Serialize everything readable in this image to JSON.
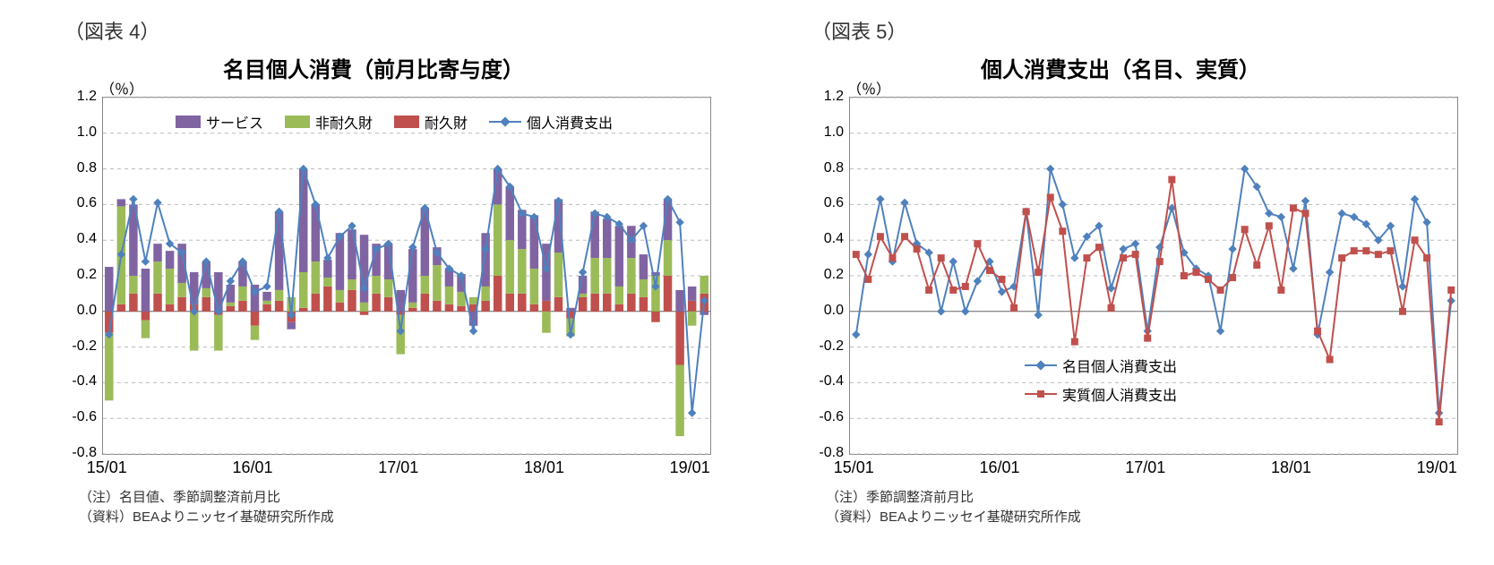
{
  "chart4": {
    "fig_label": "（図表 4）",
    "title": "名目個人消費（前月比寄与度）",
    "unit": "（％）",
    "note1": "（注）名目値、季節調整済前月比",
    "note2": "（資料）BEAよりニッセイ基礎研究所作成",
    "ylim": [
      -0.8,
      1.2
    ],
    "ytick_step": 0.2,
    "yticks": [
      "-0.8",
      "-0.6",
      "-0.4",
      "-0.2",
      "0.0",
      "0.2",
      "0.4",
      "0.6",
      "0.8",
      "1.0",
      "1.2"
    ],
    "xticks": [
      "15/01",
      "16/01",
      "17/01",
      "18/01",
      "19/01"
    ],
    "xtick_positions": [
      0,
      12,
      24,
      36,
      48
    ],
    "n_points": 50,
    "grid_color": "#bbbbbb",
    "border_color": "#888888",
    "background_color": "#ffffff",
    "legend": [
      {
        "label": "サービス",
        "type": "swatch",
        "color": "#8064a2"
      },
      {
        "label": "非耐久財",
        "type": "swatch",
        "color": "#9bbb59"
      },
      {
        "label": "耐久財",
        "type": "swatch",
        "color": "#c0504d"
      },
      {
        "label": "個人消費支出",
        "type": "line",
        "color": "#4f81bd",
        "marker": "diamond"
      }
    ],
    "series_colors": {
      "services": "#8064a2",
      "nondurables": "#9bbb59",
      "durables": "#c0504d",
      "total": "#4f81bd"
    },
    "durables": [
      -0.12,
      0.04,
      0.1,
      -0.05,
      0.1,
      0.04,
      0.08,
      0.04,
      0.08,
      -0.02,
      0.03,
      0.06,
      -0.08,
      0.04,
      0.06,
      -0.06,
      0.02,
      0.1,
      0.14,
      0.05,
      0.12,
      -0.02,
      0.1,
      0.08,
      -0.02,
      0.02,
      0.1,
      0.06,
      0.04,
      0.03,
      0.04,
      0.06,
      0.2,
      0.1,
      0.1,
      0.04,
      0.06,
      0.08,
      -0.04,
      0.08,
      0.1,
      0.1,
      0.04,
      0.1,
      0.08,
      -0.06,
      0.2,
      -0.3,
      0.06,
      0.1
    ],
    "nondurables": [
      -0.38,
      0.55,
      0.1,
      -0.1,
      0.18,
      0.2,
      0.08,
      -0.22,
      0.05,
      -0.2,
      0.02,
      0.08,
      -0.08,
      0.02,
      0.06,
      0.08,
      0.2,
      0.18,
      0.05,
      0.07,
      0.06,
      0.05,
      0.1,
      0.1,
      -0.22,
      0.03,
      0.1,
      0.2,
      0.1,
      0.08,
      0.04,
      0.08,
      0.4,
      0.3,
      0.25,
      0.2,
      -0.12,
      0.25,
      -0.1,
      0.02,
      0.2,
      0.2,
      0.1,
      0.2,
      0.1,
      0.2,
      0.2,
      -0.4,
      -0.08,
      0.1
    ],
    "services": [
      0.25,
      0.04,
      0.4,
      0.24,
      0.1,
      0.1,
      0.22,
      0.18,
      0.15,
      0.22,
      0.1,
      0.14,
      0.15,
      0.05,
      0.44,
      -0.04,
      0.58,
      0.32,
      0.1,
      0.32,
      0.28,
      0.38,
      0.18,
      0.2,
      0.12,
      0.3,
      0.38,
      0.1,
      0.1,
      0.1,
      -0.08,
      0.3,
      0.2,
      0.3,
      0.22,
      0.3,
      0.32,
      0.3,
      0.02,
      0.1,
      0.26,
      0.22,
      0.34,
      0.18,
      0.14,
      0.02,
      0.23,
      0.12,
      0.08,
      -0.02
    ],
    "total": [
      -0.13,
      0.32,
      0.63,
      0.28,
      0.61,
      0.38,
      0.33,
      0.0,
      0.28,
      0.0,
      0.17,
      0.28,
      0.11,
      0.14,
      0.56,
      -0.02,
      0.8,
      0.6,
      0.3,
      0.42,
      0.48,
      0.13,
      0.35,
      0.38,
      -0.11,
      0.36,
      0.58,
      0.33,
      0.24,
      0.2,
      -0.11,
      0.35,
      0.8,
      0.7,
      0.55,
      0.53,
      0.24,
      0.62,
      -0.13,
      0.22,
      0.55,
      0.53,
      0.49,
      0.4,
      0.48,
      0.14,
      0.63,
      0.5,
      -0.57,
      0.06
    ]
  },
  "chart5": {
    "fig_label": "（図表 5）",
    "title": "個人消費支出（名目、実質）",
    "unit": "（％）",
    "note1": "（注）季節調整済前月比",
    "note2": "（資料）BEAよりニッセイ基礎研究所作成",
    "ylim": [
      -0.8,
      1.2
    ],
    "ytick_step": 0.2,
    "yticks": [
      "-0.8",
      "-0.6",
      "-0.4",
      "-0.2",
      "0.0",
      "0.2",
      "0.4",
      "0.6",
      "0.8",
      "1.0",
      "1.2"
    ],
    "xticks": [
      "15/01",
      "16/01",
      "17/01",
      "18/01",
      "19/01"
    ],
    "xtick_positions": [
      0,
      12,
      24,
      36,
      48
    ],
    "n_points": 50,
    "grid_color": "#bbbbbb",
    "border_color": "#888888",
    "background_color": "#ffffff",
    "legend": [
      {
        "label": "名目個人消費支出",
        "type": "line",
        "color": "#4f81bd",
        "marker": "diamond"
      },
      {
        "label": "実質個人消費支出",
        "type": "line",
        "color": "#c0504d",
        "marker": "square"
      }
    ],
    "nominal": [
      -0.13,
      0.32,
      0.63,
      0.28,
      0.61,
      0.38,
      0.33,
      0.0,
      0.28,
      0.0,
      0.17,
      0.28,
      0.11,
      0.14,
      0.56,
      -0.02,
      0.8,
      0.6,
      0.3,
      0.42,
      0.48,
      0.13,
      0.35,
      0.38,
      -0.11,
      0.36,
      0.58,
      0.33,
      0.24,
      0.2,
      -0.11,
      0.35,
      0.8,
      0.7,
      0.55,
      0.53,
      0.24,
      0.62,
      -0.13,
      0.22,
      0.55,
      0.53,
      0.49,
      0.4,
      0.48,
      0.14,
      0.63,
      0.5,
      -0.57,
      0.06
    ],
    "real": [
      0.32,
      0.18,
      0.42,
      0.3,
      0.42,
      0.35,
      0.12,
      0.3,
      0.12,
      0.14,
      0.38,
      0.23,
      0.18,
      0.02,
      0.56,
      0.22,
      0.64,
      0.45,
      -0.17,
      0.3,
      0.36,
      0.02,
      0.3,
      0.32,
      -0.15,
      0.28,
      0.74,
      0.2,
      0.22,
      0.18,
      0.12,
      0.19,
      0.46,
      0.26,
      0.48,
      0.12,
      0.58,
      0.55,
      -0.11,
      -0.27,
      0.3,
      0.34,
      0.34,
      0.32,
      0.34,
      0.0,
      0.4,
      0.3,
      -0.62,
      0.12
    ],
    "series_colors": {
      "nominal": "#4f81bd",
      "real": "#c0504d"
    }
  }
}
